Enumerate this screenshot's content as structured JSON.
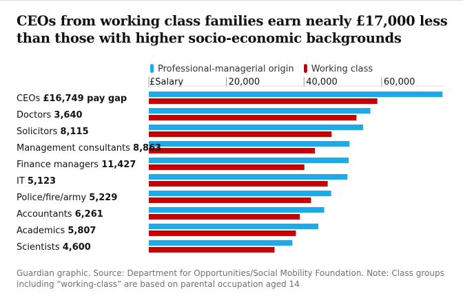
{
  "title": "CEOs from working class families earn nearly £17,000 less than those with higher socio-economic backgrounds",
  "footer": "Guardian graphic. Source: Department for Opportunities/Social Mobility Foundation. Note: Class groups including “working-class” are based on parental occupation aged 14",
  "colors": {
    "professional": "#1ea9e8",
    "working": "#c70000"
  },
  "chart_data": {
    "type": "bar",
    "orientation": "horizontal",
    "axis_unit_label": "£Salary",
    "xlim": [
      0,
      76000
    ],
    "xticks": [
      {
        "value": 20000,
        "label": "20,000"
      },
      {
        "value": 40000,
        "label": "40,000"
      },
      {
        "value": 60000,
        "label": "60,000"
      }
    ],
    "legend_position": "top-left",
    "categories": [
      {
        "name": "CEOs",
        "value_text": "£16,749 pay gap"
      },
      {
        "name": "Doctors",
        "value_text": "3,640"
      },
      {
        "name": "Solicitors",
        "value_text": "8,115"
      },
      {
        "name": "Management consultants",
        "value_text": "8,863"
      },
      {
        "name": "Finance managers",
        "value_text": "11,427"
      },
      {
        "name": "IT",
        "value_text": "5,123"
      },
      {
        "name": "Police/fire/army",
        "value_text": "5,229"
      },
      {
        "name": "Accountants",
        "value_text": "6,261"
      },
      {
        "name": "Academics",
        "value_text": "5,807"
      },
      {
        "name": "Scientists",
        "value_text": "4,600"
      }
    ],
    "series": [
      {
        "name": "Professional-managerial origin",
        "color_key": "professional",
        "values": [
          75700,
          57100,
          55200,
          51700,
          51500,
          51200,
          47000,
          45200,
          43700,
          37000
        ]
      },
      {
        "name": "Working class",
        "color_key": "working",
        "values": [
          58900,
          53500,
          47100,
          42800,
          40100,
          46100,
          41800,
          38900,
          37900,
          32400
        ]
      }
    ]
  }
}
